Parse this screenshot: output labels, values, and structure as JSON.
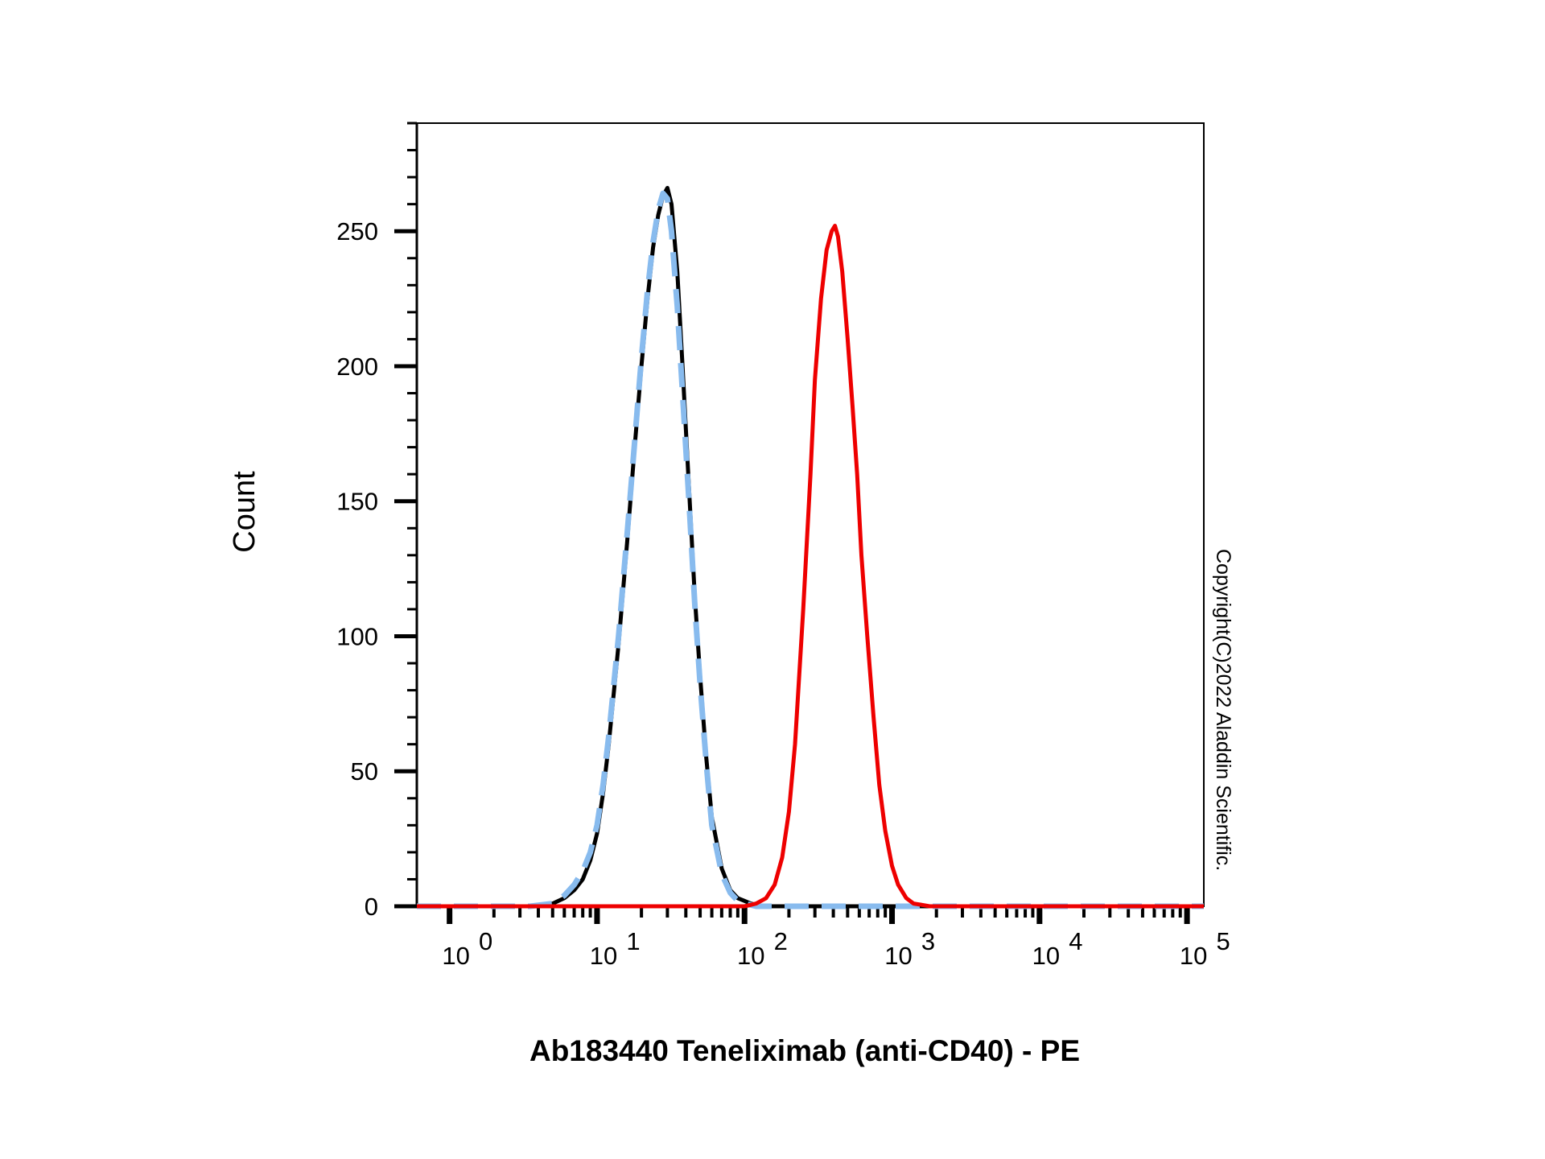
{
  "chart_data": {
    "type": "line",
    "title": "",
    "xlabel": "Ab183440 Teneliximab (anti-CD40) - PE",
    "ylabel": "Count",
    "x_scale": "log",
    "xlim": [
      0.6,
      130000
    ],
    "ylim": [
      0,
      290
    ],
    "grid": false,
    "legend": "none",
    "y_ticks": [
      0,
      50,
      100,
      150,
      200,
      250
    ],
    "y_tick_labels": [
      "0",
      "50",
      "100",
      "150",
      "200",
      "250"
    ],
    "x_ticks": [
      {
        "value": 1,
        "base": "10",
        "exp": "0"
      },
      {
        "value": 10,
        "base": "10",
        "exp": "1"
      },
      {
        "value": 100,
        "base": "10",
        "exp": "2"
      },
      {
        "value": 1000,
        "base": "10",
        "exp": "3"
      },
      {
        "value": 10000,
        "base": "10",
        "exp": "4"
      },
      {
        "value": 100000,
        "base": "10",
        "exp": "5"
      }
    ],
    "series": [
      {
        "color": "#000000",
        "dash": "solid",
        "x": [
          0.6,
          3.5,
          5,
          6,
          7,
          8,
          9,
          10,
          11,
          12,
          14,
          16,
          18,
          20,
          22,
          24,
          26,
          28,
          30,
          32,
          35,
          38,
          42,
          46,
          50,
          55,
          60,
          70,
          80,
          90,
          100,
          110,
          120,
          140,
          160,
          200,
          500,
          130000
        ],
        "y": [
          0,
          0,
          1,
          3,
          6,
          10,
          17,
          27,
          42,
          60,
          97,
          135,
          170,
          200,
          225,
          244,
          256,
          263,
          266,
          260,
          235,
          200,
          155,
          115,
          85,
          55,
          33,
          14,
          6,
          3,
          2,
          1,
          0.5,
          0,
          0,
          0,
          0,
          0
        ]
      },
      {
        "color": "#88bbee",
        "dash": "dashed",
        "x": [
          0.6,
          3.5,
          5,
          6,
          7,
          8,
          9,
          10,
          11,
          12,
          14,
          16,
          18,
          20,
          22,
          24,
          26,
          28,
          30,
          32,
          35,
          38,
          42,
          46,
          50,
          55,
          60,
          70,
          80,
          90,
          100,
          110,
          120,
          140,
          160,
          200,
          500,
          130000
        ],
        "y": [
          0,
          0,
          1,
          4,
          8,
          13,
          20,
          30,
          45,
          63,
          100,
          138,
          172,
          203,
          228,
          246,
          258,
          264,
          262,
          250,
          222,
          190,
          150,
          112,
          82,
          53,
          30,
          12,
          5,
          2,
          1,
          0.5,
          0,
          0,
          0,
          0,
          0,
          0
        ]
      },
      {
        "color": "#ee0000",
        "dash": "solid",
        "x": [
          0.6,
          100,
          110,
          120,
          140,
          160,
          180,
          200,
          220,
          250,
          280,
          300,
          330,
          360,
          390,
          410,
          430,
          460,
          500,
          540,
          580,
          620,
          680,
          750,
          820,
          900,
          1000,
          1100,
          1250,
          1400,
          1600,
          1800,
          2000,
          2200,
          130000
        ],
        "y": [
          0,
          0,
          0.5,
          1,
          3,
          8,
          18,
          35,
          60,
          110,
          160,
          195,
          225,
          243,
          250,
          252,
          248,
          235,
          210,
          185,
          160,
          130,
          100,
          70,
          45,
          28,
          15,
          8,
          3,
          1,
          0.5,
          0,
          0,
          0,
          0
        ]
      }
    ]
  },
  "copyright": "Copyright(C)2022 Aladdin Scientific."
}
